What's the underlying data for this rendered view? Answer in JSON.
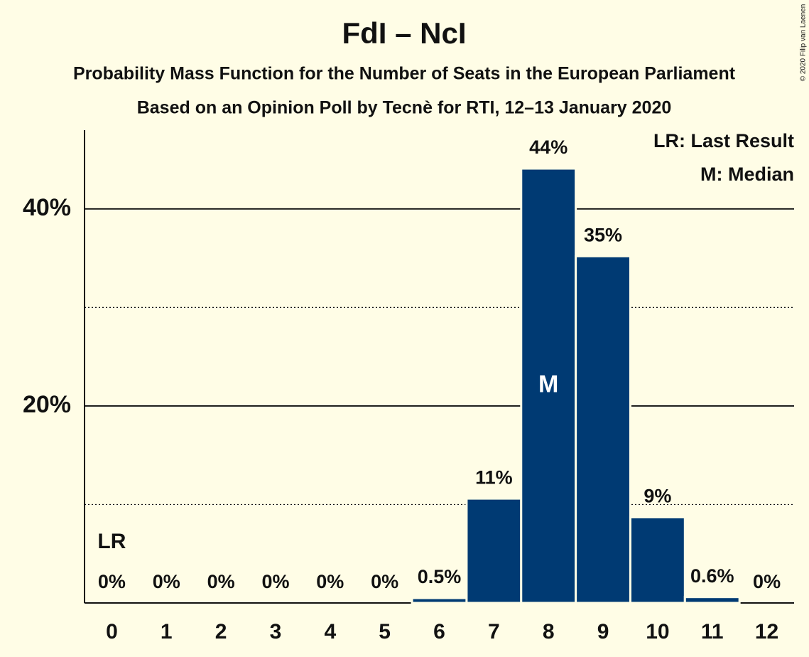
{
  "chart_data": {
    "type": "bar",
    "title": "FdI – NcI",
    "subtitle": "Probability Mass Function for the Number of Seats in the European Parliament",
    "subtitle2": "Based on an Opinion Poll by Tecnè for RTI, 12–13 January 2020",
    "credit": "© 2020 Filip van Laenen",
    "categories": [
      "0",
      "1",
      "2",
      "3",
      "4",
      "5",
      "6",
      "7",
      "8",
      "9",
      "10",
      "11",
      "12"
    ],
    "values": [
      0,
      0,
      0,
      0,
      0,
      0,
      0.5,
      10.6,
      44.1,
      35.2,
      8.7,
      0.6,
      0
    ],
    "value_labels": [
      "0%",
      "0%",
      "0%",
      "0%",
      "0%",
      "0%",
      "0.5%",
      "11%",
      "44%",
      "35%",
      "9%",
      "0.6%",
      "0%"
    ],
    "color": "#003a73",
    "ylim": [
      0,
      48
    ],
    "yticks": [
      {
        "value": 20,
        "label": "20%"
      },
      {
        "value": 40,
        "label": "40%"
      }
    ],
    "minor_yticks": [
      10,
      30
    ],
    "grid": true,
    "legend": [
      "LR: Last Result",
      "M: Median"
    ],
    "last_result": 0,
    "last_result_label": "LR",
    "median": 8,
    "median_label": "M"
  }
}
